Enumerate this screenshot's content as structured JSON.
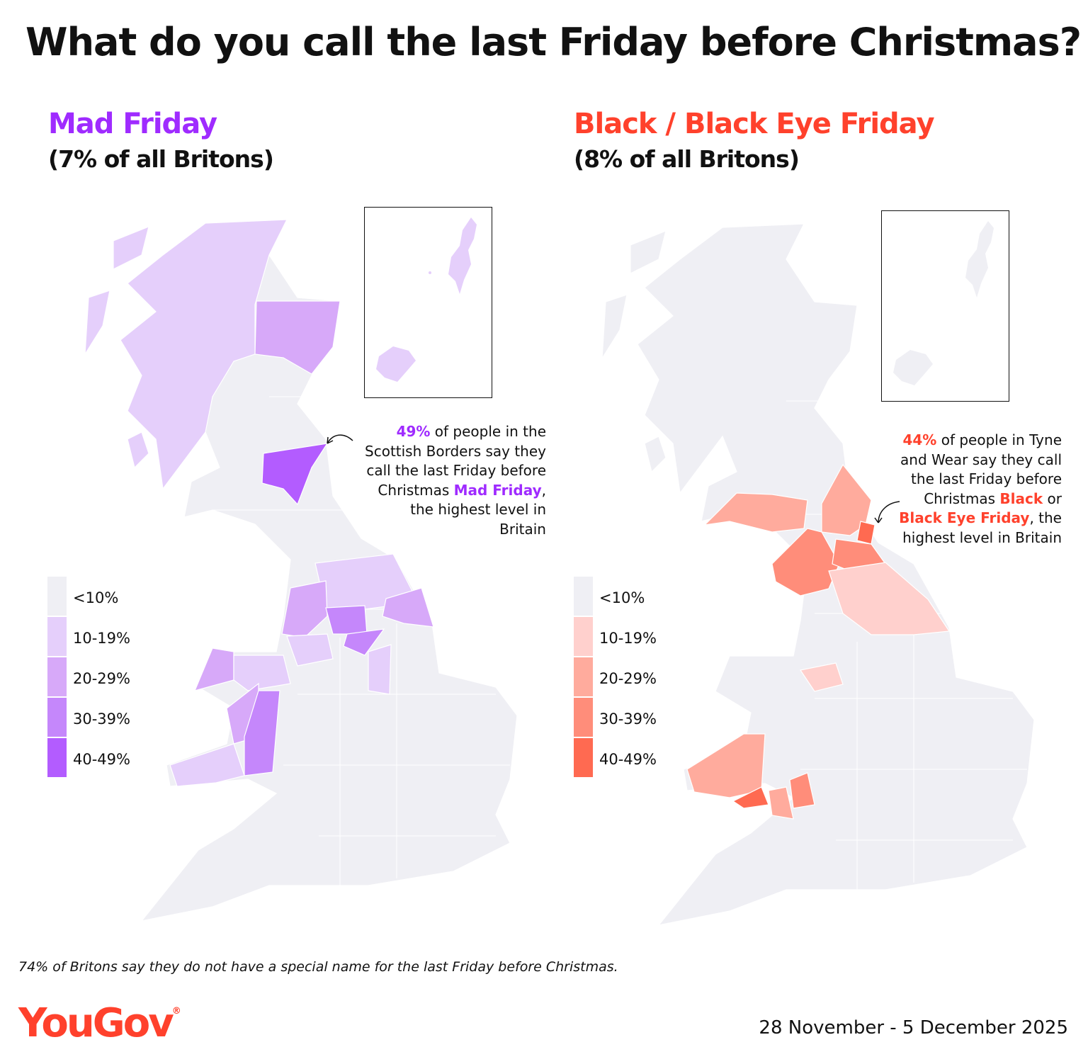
{
  "title": "What do you call the last Friday before Christmas?",
  "colors": {
    "mad_friday": "#9f2bff",
    "black_friday": "#ff412c",
    "no_data_band": "#efeff4",
    "purple_bands": [
      "#efeff4",
      "#e5cffb",
      "#d7a9f9",
      "#c587fb",
      "#b35cff"
    ],
    "red_bands": [
      "#efeff4",
      "#ffd0cd",
      "#ffab9d",
      "#ff8d7a",
      "#ff6a51"
    ]
  },
  "left_panel": {
    "name": "Mad Friday",
    "share": "(7% of all Britons)",
    "annotation": {
      "pct": "49%",
      "line1_rest": " of people in the",
      "line2": "Scottish Borders say they",
      "line3": "call the last Friday before",
      "line4_pre": "Christmas ",
      "line4_hl": "Mad Friday",
      "line4_post": ",",
      "line5": "the highest level in",
      "line6": "Britain"
    },
    "highest_region": "Scottish Borders"
  },
  "right_panel": {
    "name": "Black / Black Eye Friday",
    "share": "(8% of all Britons)",
    "annotation": {
      "pct": "44%",
      "line1_rest": " of people in Tyne",
      "line2": "and Wear say they call",
      "line3": "the last Friday before",
      "line4_pre": "Christmas ",
      "line4_hl": "Black",
      "line4_post": " or",
      "line5_hl": "Black Eye Friday",
      "line5_post": ", the",
      "line6": "highest level in Britain"
    },
    "highest_region": "Tyne and Wear"
  },
  "legend": [
    "<10%",
    "10-19%",
    "20-29%",
    "30-39%",
    "40-49%"
  ],
  "footnote": "74% of Britons say they do not have a special name for the last Friday before Christmas.",
  "logo": "YouGov",
  "logo_mark": "®",
  "dates": "28 November - 5 December 2025"
}
